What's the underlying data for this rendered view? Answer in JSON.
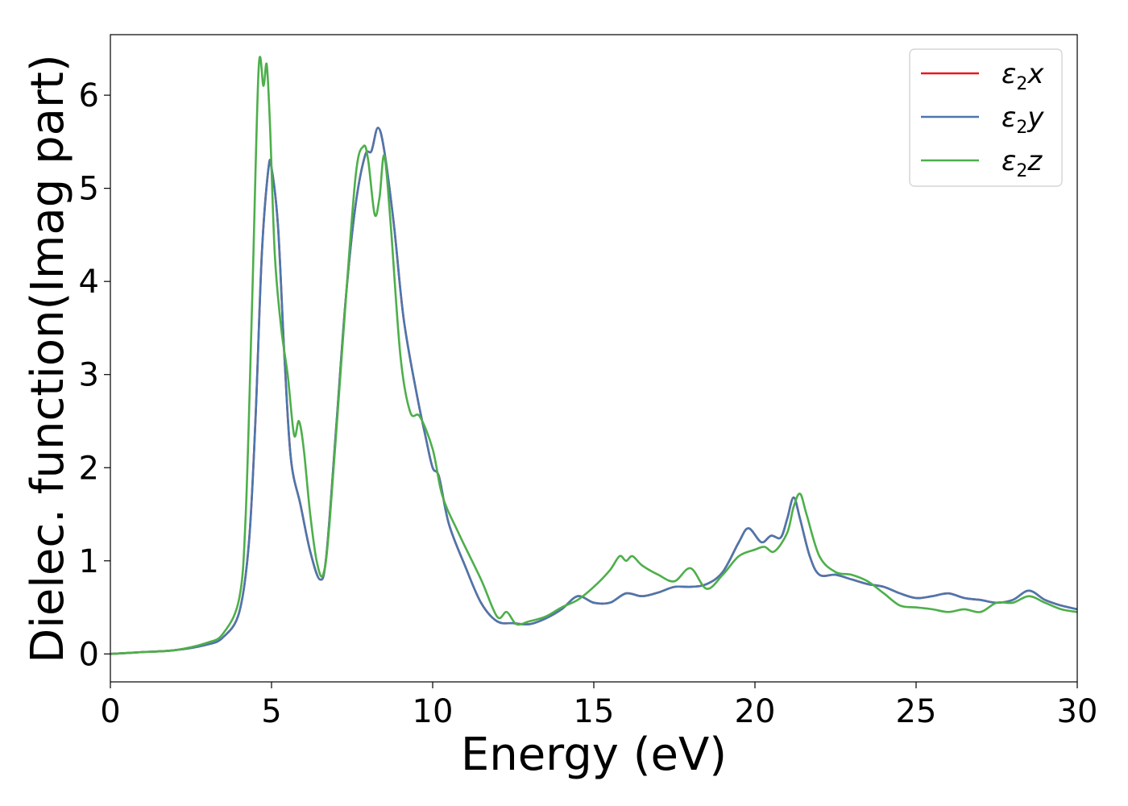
{
  "chart_data": {
    "type": "line",
    "title": "",
    "xlabel": "Energy (eV)",
    "ylabel": "Dielec. function(Imag part)",
    "xlim": [
      0,
      30
    ],
    "ylim": [
      -0.3,
      6.65
    ],
    "xticks": [
      0,
      5,
      10,
      15,
      20,
      25,
      30
    ],
    "yticks": [
      0,
      1,
      2,
      3,
      4,
      5,
      6
    ],
    "grid": false,
    "legend_position": "top-right",
    "series": [
      {
        "name": "ε2x",
        "legend_main": "ε",
        "legend_sub": "2",
        "legend_tail": "x",
        "color": "#e41a1c",
        "x": [
          0,
          1,
          2,
          3,
          3.5,
          4,
          4.3,
          4.5,
          4.7,
          4.9,
          5.0,
          5.2,
          5.4,
          5.6,
          5.9,
          6.2,
          6.5,
          6.7,
          7.0,
          7.3,
          7.6,
          7.9,
          8.1,
          8.3,
          8.5,
          8.8,
          9.1,
          9.5,
          9.8,
          10.0,
          10.2,
          10.5,
          11.0,
          11.5,
          12.0,
          12.5,
          13.0,
          13.5,
          14.0,
          14.5,
          15.0,
          15.5,
          16.0,
          16.5,
          17.0,
          17.5,
          18.0,
          18.5,
          19.0,
          19.5,
          19.8,
          20.2,
          20.5,
          20.8,
          21.0,
          21.2,
          21.4,
          21.7,
          22.0,
          22.5,
          23.0,
          23.5,
          24.0,
          24.5,
          25.0,
          25.5,
          26.0,
          26.5,
          27.0,
          27.5,
          28.0,
          28.5,
          29.0,
          29.5,
          30.0
        ],
        "y": [
          0,
          0.02,
          0.04,
          0.1,
          0.18,
          0.45,
          1.2,
          2.5,
          4.3,
          5.2,
          5.22,
          4.6,
          3.2,
          2.1,
          1.6,
          1.1,
          0.8,
          1.05,
          2.4,
          3.8,
          4.8,
          5.35,
          5.4,
          5.65,
          5.4,
          4.6,
          3.6,
          2.8,
          2.3,
          2.0,
          1.9,
          1.4,
          0.95,
          0.55,
          0.35,
          0.33,
          0.32,
          0.38,
          0.48,
          0.62,
          0.55,
          0.55,
          0.65,
          0.62,
          0.66,
          0.72,
          0.72,
          0.75,
          0.88,
          1.2,
          1.35,
          1.2,
          1.27,
          1.25,
          1.45,
          1.68,
          1.45,
          1.05,
          0.85,
          0.85,
          0.8,
          0.75,
          0.72,
          0.65,
          0.6,
          0.62,
          0.65,
          0.6,
          0.58,
          0.55,
          0.58,
          0.68,
          0.58,
          0.52,
          0.48
        ]
      },
      {
        "name": "ε2y",
        "legend_main": "ε",
        "legend_sub": "2",
        "legend_tail": "y",
        "color": "#4b77ad",
        "x": [
          0,
          1,
          2,
          3,
          3.5,
          4,
          4.3,
          4.5,
          4.7,
          4.9,
          5.0,
          5.2,
          5.4,
          5.6,
          5.9,
          6.2,
          6.5,
          6.7,
          7.0,
          7.3,
          7.6,
          7.9,
          8.1,
          8.3,
          8.5,
          8.8,
          9.1,
          9.5,
          9.8,
          10.0,
          10.2,
          10.5,
          11.0,
          11.5,
          12.0,
          12.5,
          13.0,
          13.5,
          14.0,
          14.5,
          15.0,
          15.5,
          16.0,
          16.5,
          17.0,
          17.5,
          18.0,
          18.5,
          19.0,
          19.5,
          19.8,
          20.2,
          20.5,
          20.8,
          21.0,
          21.2,
          21.4,
          21.7,
          22.0,
          22.5,
          23.0,
          23.5,
          24.0,
          24.5,
          25.0,
          25.5,
          26.0,
          26.5,
          27.0,
          27.5,
          28.0,
          28.5,
          29.0,
          29.5,
          30.0
        ],
        "y": [
          0,
          0.02,
          0.04,
          0.1,
          0.18,
          0.45,
          1.2,
          2.5,
          4.3,
          5.2,
          5.22,
          4.6,
          3.2,
          2.1,
          1.6,
          1.1,
          0.8,
          1.05,
          2.4,
          3.8,
          4.8,
          5.35,
          5.4,
          5.65,
          5.4,
          4.6,
          3.6,
          2.8,
          2.3,
          2.0,
          1.9,
          1.4,
          0.95,
          0.55,
          0.35,
          0.33,
          0.32,
          0.38,
          0.48,
          0.62,
          0.55,
          0.55,
          0.65,
          0.62,
          0.66,
          0.72,
          0.72,
          0.75,
          0.88,
          1.2,
          1.35,
          1.2,
          1.27,
          1.25,
          1.45,
          1.68,
          1.45,
          1.05,
          0.85,
          0.85,
          0.8,
          0.75,
          0.72,
          0.65,
          0.6,
          0.62,
          0.65,
          0.6,
          0.58,
          0.55,
          0.58,
          0.68,
          0.58,
          0.52,
          0.48
        ]
      },
      {
        "name": "ε2z",
        "legend_main": "ε",
        "legend_sub": "2",
        "legend_tail": "z",
        "color": "#4daf4a",
        "x": [
          0,
          1,
          2,
          3,
          3.5,
          4,
          4.2,
          4.4,
          4.6,
          4.75,
          4.85,
          4.95,
          5.1,
          5.3,
          5.5,
          5.7,
          5.85,
          6.0,
          6.2,
          6.4,
          6.6,
          6.8,
          7.2,
          7.6,
          7.85,
          8.0,
          8.2,
          8.35,
          8.5,
          8.7,
          9.0,
          9.3,
          9.6,
          10.0,
          10.3,
          10.8,
          11.5,
          12.0,
          12.3,
          12.6,
          13.0,
          13.5,
          14.0,
          14.5,
          15.0,
          15.5,
          15.8,
          16.0,
          16.2,
          16.5,
          17.0,
          17.5,
          18.0,
          18.5,
          19.0,
          19.5,
          20.0,
          20.3,
          20.6,
          21.0,
          21.2,
          21.4,
          21.6,
          22.0,
          22.5,
          23.0,
          23.5,
          24.0,
          24.5,
          25.0,
          25.5,
          26.0,
          26.5,
          27.0,
          27.5,
          28.0,
          28.5,
          29.0,
          29.5,
          30.0
        ],
        "y": [
          0,
          0.02,
          0.04,
          0.12,
          0.22,
          0.6,
          1.5,
          3.8,
          6.28,
          6.1,
          6.33,
          5.7,
          4.3,
          3.5,
          3.0,
          2.35,
          2.5,
          2.2,
          1.5,
          1.0,
          0.85,
          1.4,
          3.3,
          5.1,
          5.45,
          5.3,
          4.72,
          4.9,
          5.35,
          4.6,
          3.2,
          2.6,
          2.55,
          2.2,
          1.7,
          1.3,
          0.8,
          0.4,
          0.45,
          0.32,
          0.35,
          0.4,
          0.5,
          0.58,
          0.72,
          0.9,
          1.05,
          1.0,
          1.05,
          0.95,
          0.85,
          0.78,
          0.92,
          0.7,
          0.85,
          1.05,
          1.12,
          1.15,
          1.1,
          1.3,
          1.58,
          1.72,
          1.5,
          1.05,
          0.88,
          0.85,
          0.78,
          0.65,
          0.52,
          0.5,
          0.48,
          0.45,
          0.48,
          0.45,
          0.55,
          0.55,
          0.62,
          0.55,
          0.48,
          0.45
        ]
      }
    ]
  }
}
